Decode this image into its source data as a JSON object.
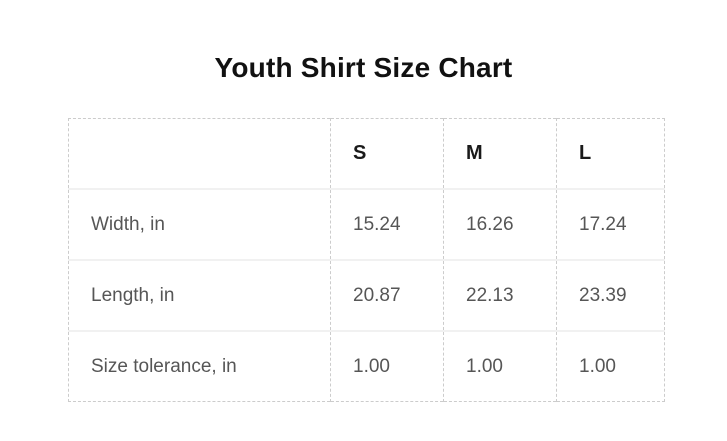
{
  "title": "Youth Shirt Size Chart",
  "chart_data": {
    "type": "table",
    "title": "Youth Shirt Size Chart",
    "columns": [
      "",
      "S",
      "M",
      "L"
    ],
    "rows": [
      [
        "Width, in",
        "15.24",
        "16.26",
        "17.24"
      ],
      [
        "Length, in",
        "20.87",
        "22.13",
        "23.39"
      ],
      [
        "Size tolerance, in",
        "1.00",
        "1.00",
        "1.00"
      ]
    ],
    "units": "in"
  },
  "colors": {
    "background": "#ffffff",
    "title_text": "#111111",
    "header_text": "#1a1a1a",
    "body_text": "#565656",
    "dashed_border": "#cccccc",
    "row_separator": "#f1f1f1"
  }
}
